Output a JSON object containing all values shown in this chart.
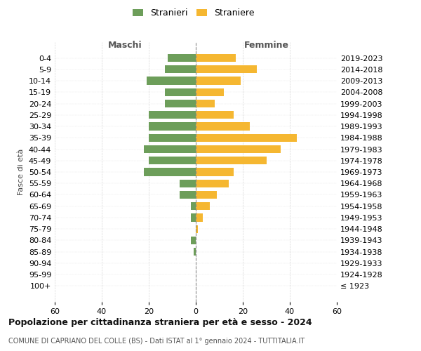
{
  "age_groups": [
    "100+",
    "95-99",
    "90-94",
    "85-89",
    "80-84",
    "75-79",
    "70-74",
    "65-69",
    "60-64",
    "55-59",
    "50-54",
    "45-49",
    "40-44",
    "35-39",
    "30-34",
    "25-29",
    "20-24",
    "15-19",
    "10-14",
    "5-9",
    "0-4"
  ],
  "birth_years": [
    "≤ 1923",
    "1924-1928",
    "1929-1933",
    "1934-1938",
    "1939-1943",
    "1944-1948",
    "1949-1953",
    "1954-1958",
    "1959-1963",
    "1964-1968",
    "1969-1973",
    "1974-1978",
    "1979-1983",
    "1984-1988",
    "1989-1993",
    "1994-1998",
    "1999-2003",
    "2004-2008",
    "2009-2013",
    "2014-2018",
    "2019-2023"
  ],
  "males": [
    0,
    0,
    0,
    1,
    2,
    0,
    2,
    2,
    7,
    7,
    22,
    20,
    22,
    20,
    20,
    20,
    13,
    13,
    21,
    13,
    12
  ],
  "females": [
    0,
    0,
    0,
    0,
    0,
    1,
    3,
    6,
    9,
    14,
    16,
    30,
    36,
    43,
    23,
    16,
    8,
    12,
    19,
    26,
    17
  ],
  "male_color": "#6d9e5a",
  "female_color": "#f5b731",
  "background_color": "#ffffff",
  "grid_color": "#cccccc",
  "title": "Popolazione per cittadinanza straniera per età e sesso - 2024",
  "subtitle": "COMUNE DI CAPRIANO DEL COLLE (BS) - Dati ISTAT al 1° gennaio 2024 - TUTTITALIA.IT",
  "header_left": "Maschi",
  "header_right": "Femmine",
  "ylabel_left": "Fasce di età",
  "legend_male": "Stranieri",
  "legend_female": "Straniere",
  "xlim": 60,
  "title_fontsize": 9,
  "subtitle_fontsize": 7,
  "tick_fontsize": 8,
  "header_fontsize": 9
}
